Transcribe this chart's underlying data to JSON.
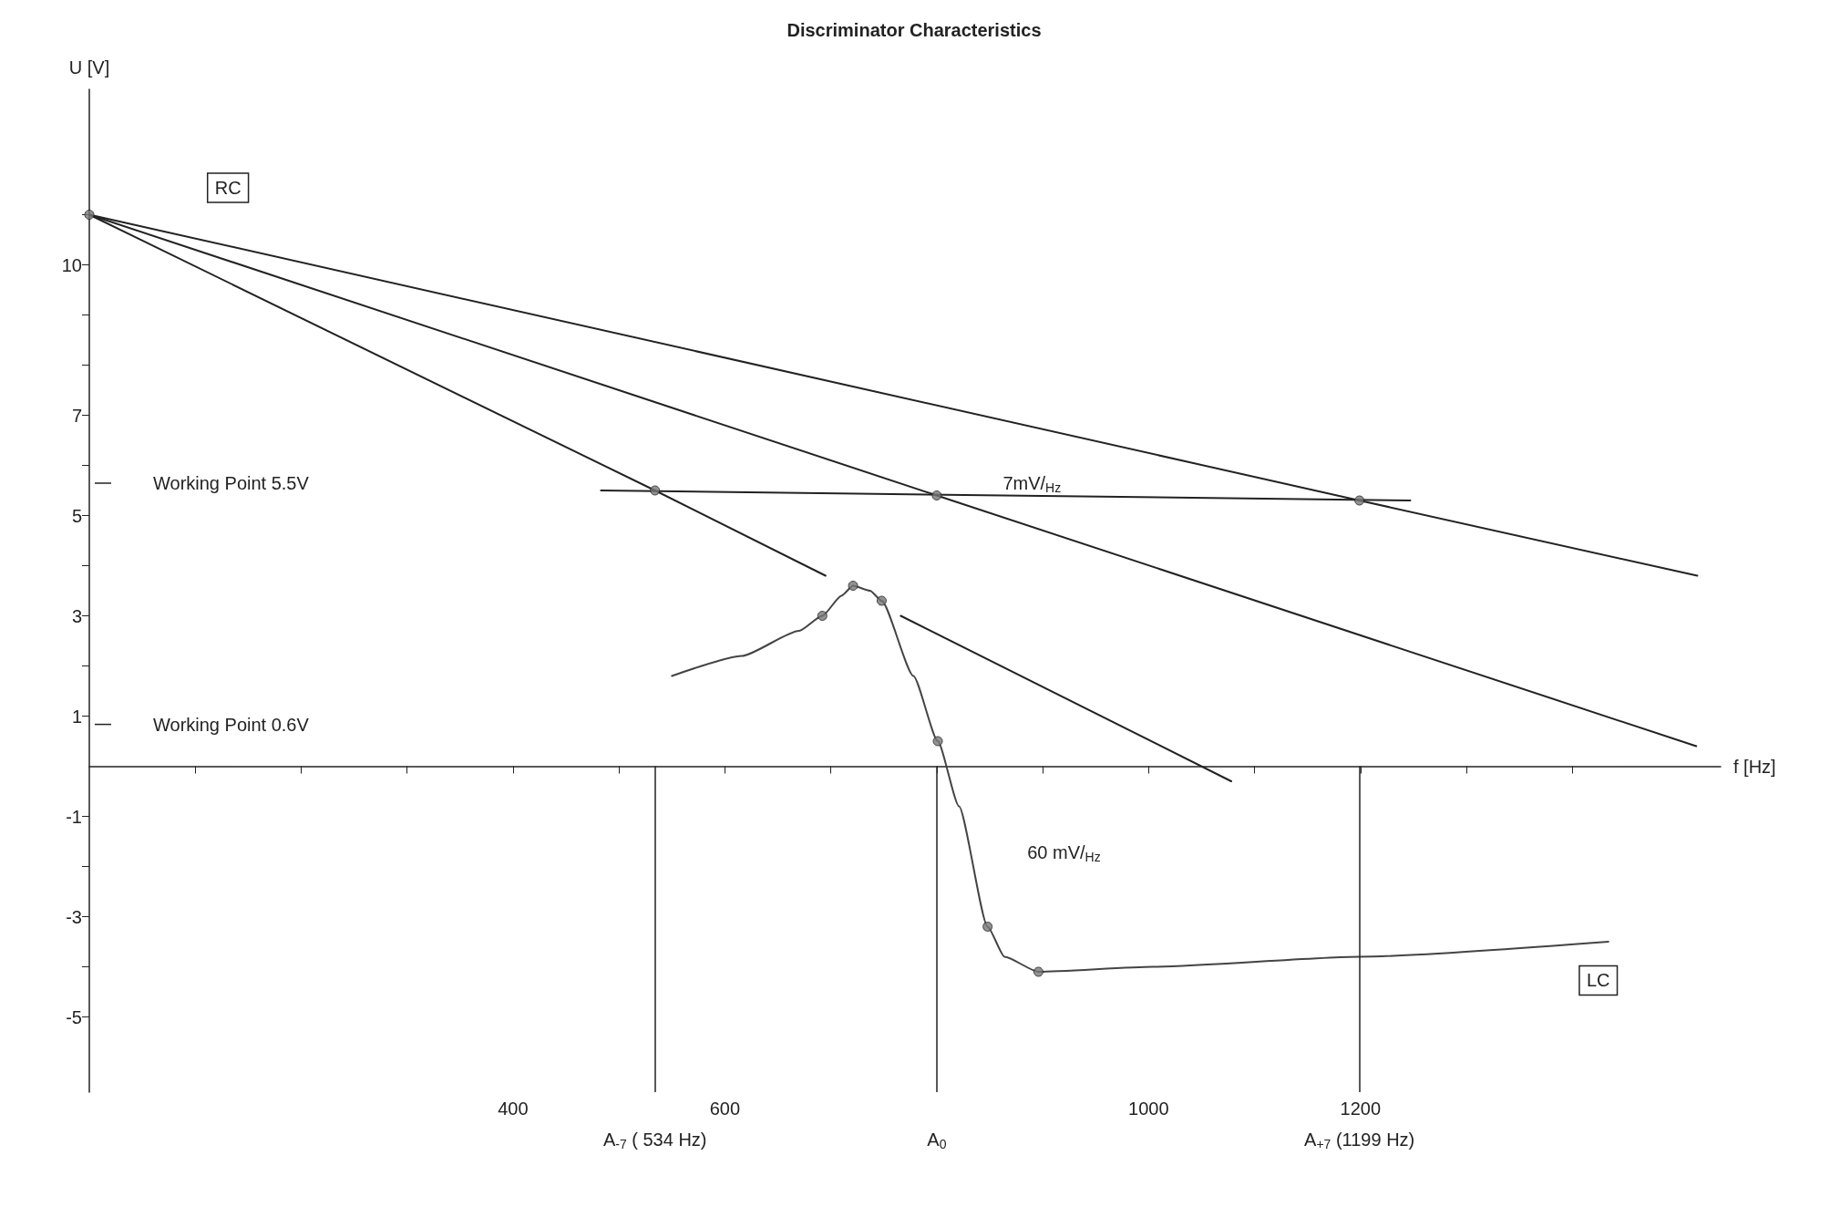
{
  "chart_data": {
    "type": "line",
    "title": "Discriminator Characteristics",
    "xlabel": "f [Hz]",
    "ylabel": "U [V]",
    "xlim": [
      0,
      1540
    ],
    "ylim": [
      -6.5,
      13.5
    ],
    "xticks": [
      {
        "value": 100,
        "label": null
      },
      {
        "value": 200,
        "label": null
      },
      {
        "value": 300,
        "label": null
      },
      400,
      {
        "value": 500,
        "label": null
      },
      600,
      {
        "value": 700,
        "label": null
      },
      {
        "value": 800,
        "label": null
      },
      {
        "value": 900,
        "label": null
      },
      1000,
      {
        "value": 1100,
        "label": null
      },
      1200,
      {
        "value": 1300,
        "label": null
      },
      {
        "value": 1400,
        "label": null
      }
    ],
    "yticks": [
      -5,
      {
        "value": -4,
        "label": null
      },
      -3,
      {
        "value": -2,
        "label": null
      },
      -1,
      1,
      {
        "value": 2,
        "label": null
      },
      3,
      {
        "value": 4,
        "label": null
      },
      5,
      {
        "value": 6,
        "label": null
      },
      7,
      {
        "value": 8,
        "label": null
      },
      {
        "value": 9,
        "label": null
      },
      10,
      {
        "value": 11,
        "label": null
      }
    ],
    "grid": false,
    "marker": "none",
    "line_style": "solid",
    "series": [
      {
        "color": "#222222",
        "x": [
          0,
          534,
          695,
          730,
          766,
          1078
        ],
        "values": [
          11,
          5.5,
          3.8,
          null,
          3.0,
          -0.3
        ]
      },
      {
        "color": "#222222",
        "x": [
          0,
          800,
          1517
        ],
        "values": [
          11,
          5.4,
          0.4
        ]
      },
      {
        "color": "#222222",
        "x": [
          0,
          1199,
          1518
        ],
        "values": [
          11,
          5.3,
          3.8
        ]
      },
      {
        "color": "#222222",
        "x": [
          483,
          1247
        ],
        "values": [
          5.5,
          5.3
        ]
      },
      {
        "color": "#444444",
        "x": [
          550,
          616,
          670,
          692,
          710,
          721,
          737,
          748,
          778,
          801,
          821,
          848,
          864,
          896,
          1004,
          1199,
          1434
        ],
        "values": [
          1.8,
          2.2,
          2.7,
          3.0,
          3.4,
          3.6,
          3.5,
          3.3,
          1.8,
          0.5,
          -0.8,
          -3.2,
          -3.8,
          -4.1,
          -4.0,
          -3.8,
          -3.5
        ]
      },
      {
        "type": "scatter",
        "marker": "circle",
        "color": "#777777",
        "x": [
          0,
          534,
          800,
          1199,
          692,
          721,
          748,
          801,
          848,
          896
        ],
        "values": [
          11,
          5.5,
          5.4,
          5.3,
          3.0,
          3.6,
          3.3,
          0.5,
          -3.2,
          -4.1
        ]
      }
    ],
    "ref_lines": [
      {
        "axis": "x",
        "value": 534,
        "label": "A$_{-7}$ ( 534 Hz)"
      },
      {
        "axis": "x",
        "value": 800,
        "label": "A$_{0}$"
      },
      {
        "axis": "x",
        "value": 1199,
        "label": "A$_{+7}$ (1199 Hz)"
      }
    ],
    "annotations": [
      "RC",
      "LC",
      "Working Point 5.5V",
      "Working Point 0.6V",
      "7mV/$_{Hz}$",
      "60 mV/$_{Hz}$"
    ]
  }
}
